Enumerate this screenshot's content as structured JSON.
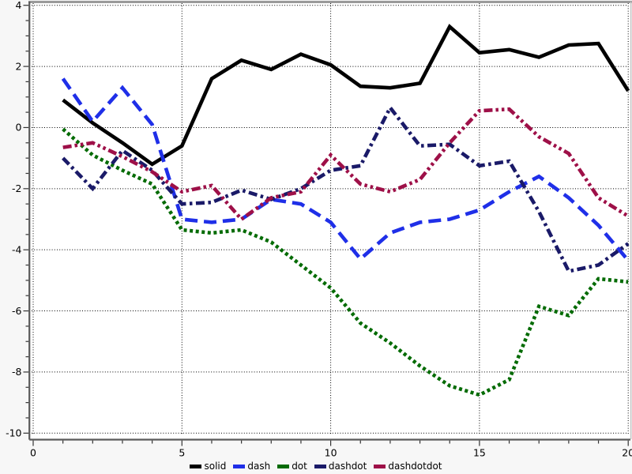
{
  "chart_data": {
    "type": "line",
    "title": "",
    "xlabel": "",
    "ylabel": "",
    "x": [
      1,
      2,
      3,
      4,
      5,
      6,
      7,
      8,
      9,
      10,
      11,
      12,
      13,
      14,
      15,
      16,
      17,
      18,
      19,
      20
    ],
    "series": [
      {
        "name": "solid",
        "color": "#000000",
        "dash": "solid",
        "values": [
          0.9,
          0.15,
          -0.5,
          -1.2,
          -0.6,
          1.6,
          2.2,
          1.9,
          2.4,
          2.05,
          1.35,
          1.3,
          1.45,
          3.3,
          2.45,
          2.55,
          2.3,
          2.7,
          2.75,
          1.2
        ]
      },
      {
        "name": "dash",
        "color": "#1f2fe8",
        "dash": "dash",
        "values": [
          1.6,
          0.2,
          1.3,
          0.1,
          -3.0,
          -3.1,
          -3.0,
          -2.35,
          -2.5,
          -3.1,
          -4.3,
          -3.45,
          -3.1,
          -3.0,
          -2.7,
          -2.1,
          -1.6,
          -2.3,
          -3.2,
          -4.35
        ]
      },
      {
        "name": "dot",
        "color": "#046b04",
        "dash": "dot",
        "values": [
          -0.05,
          -0.9,
          -1.4,
          -1.85,
          -3.35,
          -3.45,
          -3.35,
          -3.75,
          -4.5,
          -5.25,
          -6.4,
          -7.05,
          -7.8,
          -8.45,
          -8.75,
          -8.25,
          -5.85,
          -6.15,
          -4.95,
          -5.05
        ]
      },
      {
        "name": "dashdot",
        "color": "#1a1a68",
        "dash": "dashdot",
        "values": [
          -1.0,
          -2.0,
          -0.75,
          -1.4,
          -2.5,
          -2.45,
          -2.05,
          -2.35,
          -2.0,
          -1.4,
          -1.25,
          0.65,
          -0.6,
          -0.55,
          -1.25,
          -1.1,
          -2.75,
          -4.7,
          -4.5,
          -3.8
        ]
      },
      {
        "name": "dashdotdot",
        "color": "#9e1048",
        "dash": "dashdotdot",
        "values": [
          -0.65,
          -0.5,
          -0.95,
          -1.45,
          -2.1,
          -1.9,
          -3.0,
          -2.3,
          -2.1,
          -0.9,
          -1.85,
          -2.1,
          -1.7,
          -0.5,
          0.55,
          0.6,
          -0.3,
          -0.85,
          -2.3,
          -2.9
        ]
      }
    ],
    "xlim": [
      0,
      20
    ],
    "ylim": [
      -10,
      4
    ],
    "x_major_ticks": [
      0,
      5,
      10,
      15,
      20
    ],
    "x_tick_labels": [
      "0",
      "5",
      "10",
      "15",
      "20"
    ],
    "x_minor_step": 1,
    "y_major_ticks": [
      4,
      2,
      0,
      -2,
      -4,
      -6,
      -8,
      -10
    ],
    "y_tick_labels": [
      "4",
      "2",
      "0",
      "-2",
      "-4",
      "-6",
      "-8",
      "-10"
    ],
    "y_minor_step": 0.5,
    "grid": "dotted",
    "legend_position": "bottom-center",
    "legend": [
      "solid",
      "dash",
      "dot",
      "dashdot",
      "dashdotdot"
    ]
  },
  "style": {
    "plot_background": "#ffffff",
    "outer_background": "#f7f7f7",
    "grid_color": "#000000",
    "axis_color": "#5a5a5a",
    "frame_top_color": "#9a9a9a",
    "frame_right_color": "#c8c8c8",
    "line_width": 4.6
  }
}
